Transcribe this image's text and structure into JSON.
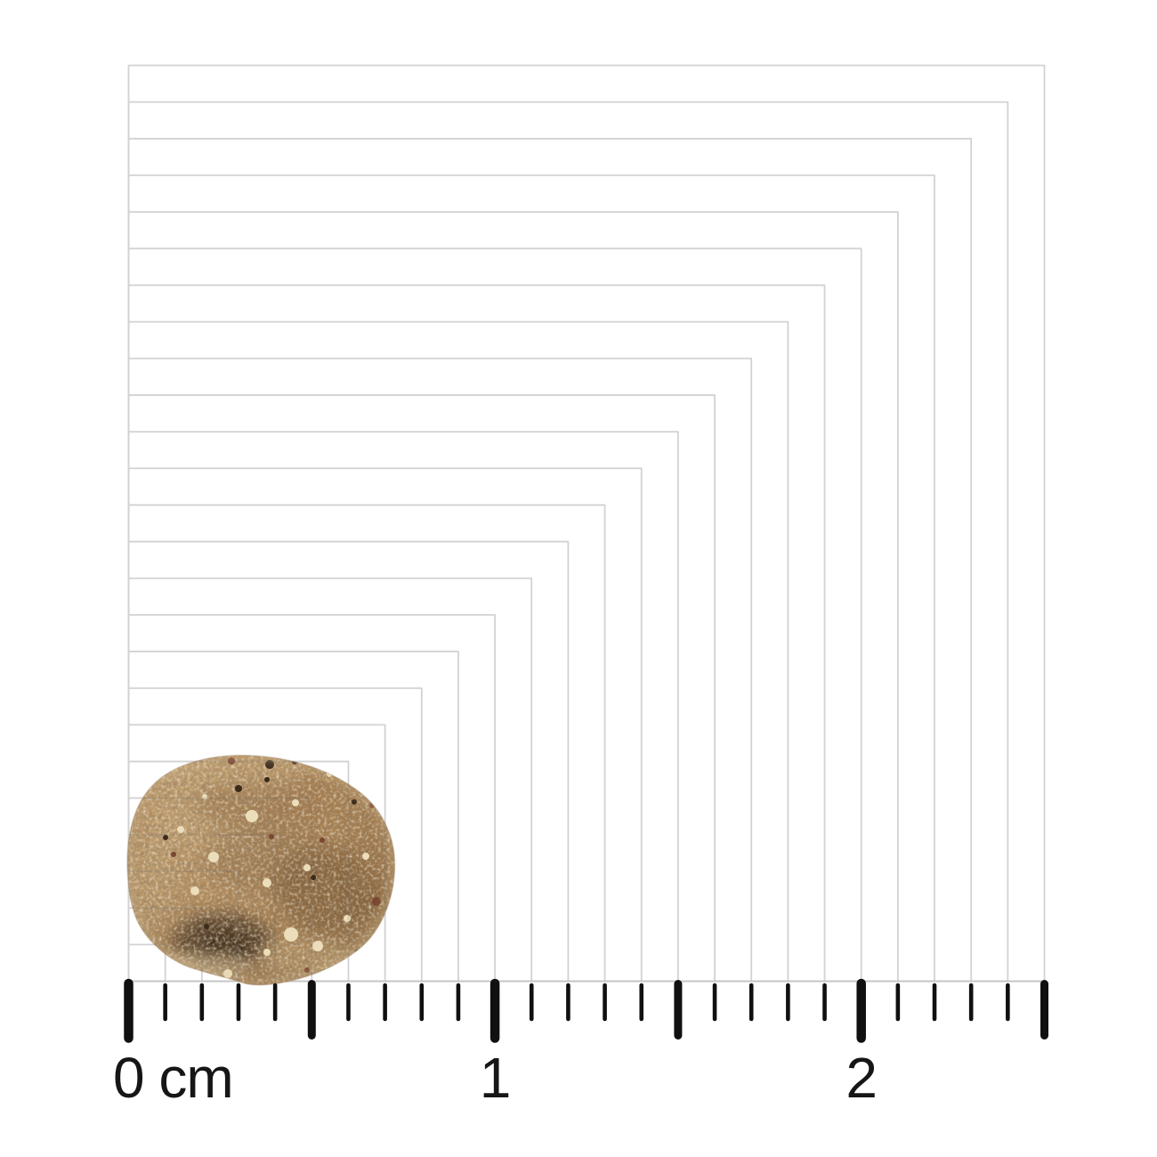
{
  "scale_figure": {
    "unit": "cm",
    "total_mm": 25,
    "minor_step_mm": 1,
    "major_step_mm": 5,
    "labeled_ticks": [
      {
        "text": "0 cm",
        "mm": 0
      },
      {
        "text": "1",
        "mm": 10
      },
      {
        "text": "2",
        "mm": 20
      }
    ],
    "colors": {
      "grid_line": "#d2d2d2",
      "grid_overlay_line": "#6b6b6b",
      "baseline": "#c6c6c6",
      "tick": "#101010",
      "label_text": "#161616",
      "background": "#ffffff"
    }
  },
  "specimen": {
    "name": "dry-food-kibble",
    "approx_width_cm": 0.75,
    "approx_height_cm": 0.62,
    "palette": {
      "base": "#b08a5c",
      "light": "#cfb184",
      "cream_fleck": "#ecdebb",
      "dark_patch": "#4c3827",
      "olive_brown": "#6a4c2c",
      "red_brown": "#7a4531"
    }
  }
}
